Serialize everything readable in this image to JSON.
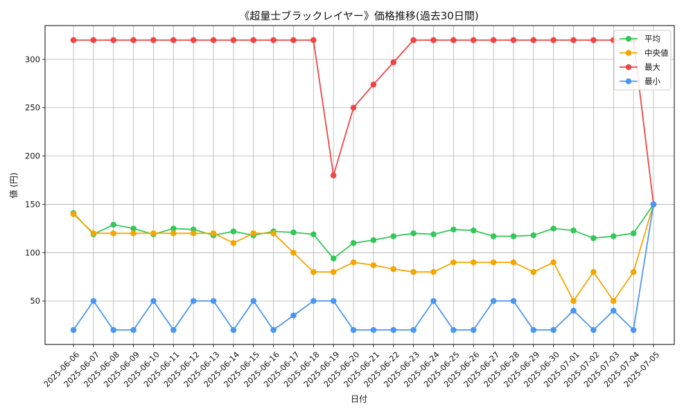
{
  "chart_data": {
    "type": "line",
    "title": "《超量士ブラックレイヤー》価格推移(過去30日間)",
    "xlabel": "日付",
    "ylabel": "値 (円)",
    "ylim": [
      5,
      335
    ],
    "yticks": [
      50,
      100,
      150,
      200,
      250,
      300
    ],
    "grid": true,
    "legend_position": "top-right",
    "categories": [
      "2025-06-06",
      "2025-06-07",
      "2025-06-08",
      "2025-06-09",
      "2025-06-10",
      "2025-06-11",
      "2025-06-12",
      "2025-06-13",
      "2025-06-14",
      "2025-06-15",
      "2025-06-16",
      "2025-06-17",
      "2025-06-18",
      "2025-06-19",
      "2025-06-20",
      "2025-06-21",
      "2025-06-22",
      "2025-06-23",
      "2025-06-24",
      "2025-06-25",
      "2025-06-26",
      "2025-06-27",
      "2025-06-28",
      "2025-06-29",
      "2025-06-30",
      "2025-07-01",
      "2025-07-02",
      "2025-07-03",
      "2025-07-04",
      "2025-07-05"
    ],
    "series": [
      {
        "name": "平均",
        "color": "#33c759",
        "values": [
          141,
          119,
          129,
          125,
          119,
          125,
          124,
          118,
          122,
          118,
          122,
          121,
          119,
          94,
          110,
          113,
          117,
          120,
          119,
          124,
          123,
          117,
          117,
          118,
          125,
          123,
          115,
          117,
          120,
          150
        ]
      },
      {
        "name": "中央値",
        "color": "#f5a500",
        "values": [
          140,
          120,
          120,
          120,
          120,
          120,
          120,
          120,
          110,
          120,
          120,
          100,
          80,
          80,
          90,
          87,
          83,
          80,
          80,
          90,
          90,
          90,
          90,
          80,
          90,
          50,
          80,
          50,
          80,
          150
        ]
      },
      {
        "name": "最大",
        "color": "#ef4444",
        "values": [
          320,
          320,
          320,
          320,
          320,
          320,
          320,
          320,
          320,
          320,
          320,
          320,
          320,
          180,
          250,
          274,
          297,
          320,
          320,
          320,
          320,
          320,
          320,
          320,
          320,
          320,
          320,
          320,
          320,
          150
        ]
      },
      {
        "name": "最小",
        "color": "#4a96f0",
        "values": [
          20,
          50,
          20,
          20,
          50,
          20,
          50,
          50,
          20,
          50,
          20,
          35,
          50,
          50,
          20,
          20,
          20,
          20,
          50,
          20,
          20,
          50,
          50,
          20,
          20,
          40,
          20,
          40,
          20,
          150
        ]
      }
    ]
  }
}
